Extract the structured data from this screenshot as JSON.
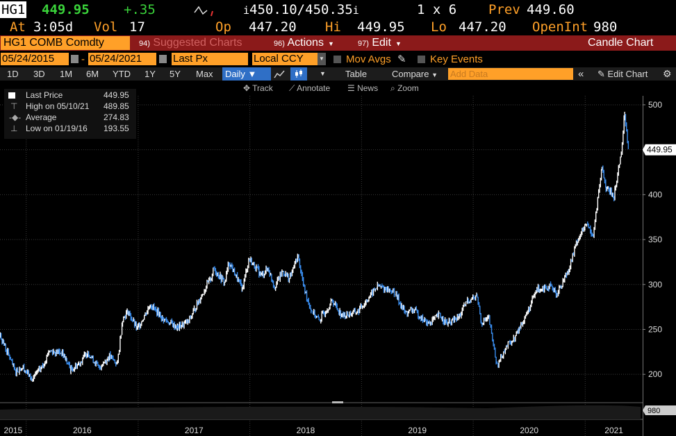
{
  "quote": {
    "ticker": "HG1",
    "last": "449.95",
    "change": "+.35",
    "bid": "450.10",
    "ask": "450.35",
    "size": "1 x 6",
    "prev_label": "Prev",
    "prev": "449.60",
    "at_label": "At",
    "time": "3:05d",
    "vol_label": "Vol",
    "vol": "17",
    "op_label": "Op",
    "open": "447.20",
    "hi_label": "Hi",
    "high": "449.95",
    "lo_label": "Lo",
    "low": "447.20",
    "oi_label": "OpenInt",
    "open_interest": "980"
  },
  "toolbar": {
    "security": "HG1 COMB Comdty",
    "suggested": {
      "num": "94)",
      "label": "Suggested Charts"
    },
    "actions": {
      "num": "96)",
      "label": "Actions"
    },
    "edit": {
      "num": "97)",
      "label": "Edit"
    },
    "chart_type": "Candle Chart"
  },
  "controls": {
    "start_date": "05/24/2015",
    "end_date": "05/24/2021",
    "field": "Last Px",
    "currency": "Local CCY",
    "mov_avgs": "Mov Avgs",
    "key_events": "Key Events"
  },
  "periods": [
    "1D",
    "3D",
    "1M",
    "6M",
    "YTD",
    "1Y",
    "5Y",
    "Max"
  ],
  "frequency": "Daily",
  "table_label": "Table",
  "compare_label": "Compare",
  "add_data_placeholder": "Add Data",
  "edit_chart_label": "Edit Chart",
  "tools": {
    "track": "Track",
    "annotate": "Annotate",
    "news": "News",
    "zoom": "Zoom"
  },
  "legend": [
    {
      "label": "Last Price",
      "value": "449.95"
    },
    {
      "label": "High on 05/10/21",
      "value": "489.85"
    },
    {
      "label": "Average",
      "value": "274.83"
    },
    {
      "label": "Low on 01/19/16",
      "value": "193.55"
    }
  ],
  "colors": {
    "accent": "#ffa028",
    "up": "#ffffff",
    "down": "#3a8ef0",
    "bar": "#8b1a1a",
    "change": "#3ad33a"
  },
  "chart_data": {
    "type": "line",
    "title": "",
    "xlabel": "",
    "ylabel": "",
    "x_ticks": [
      "2015",
      "2016",
      "2017",
      "2018",
      "2019",
      "2020",
      "2021"
    ],
    "y_ticks": [
      200,
      250,
      300,
      350,
      400,
      450,
      500
    ],
    "ylim": [
      170,
      510
    ],
    "last_label": "449.95",
    "volume_label": "980",
    "grid": true,
    "series": [
      {
        "values": [
          {
            "x": "2015-05-26",
            "y": 285
          },
          {
            "x": "2015-07-01",
            "y": 262
          },
          {
            "x": "2015-07-24",
            "y": 238
          },
          {
            "x": "2015-08-20",
            "y": 232
          },
          {
            "x": "2015-09-10",
            "y": 244
          },
          {
            "x": "2015-10-08",
            "y": 243
          },
          {
            "x": "2015-11-05",
            "y": 221
          },
          {
            "x": "2015-11-25",
            "y": 203
          },
          {
            "x": "2015-12-22",
            "y": 208
          },
          {
            "x": "2016-01-19",
            "y": 194
          },
          {
            "x": "2016-02-25",
            "y": 210
          },
          {
            "x": "2016-03-15",
            "y": 226
          },
          {
            "x": "2016-04-28",
            "y": 224
          },
          {
            "x": "2016-05-26",
            "y": 205
          },
          {
            "x": "2016-06-21",
            "y": 212
          },
          {
            "x": "2016-07-20",
            "y": 225
          },
          {
            "x": "2016-08-25",
            "y": 207
          },
          {
            "x": "2016-09-29",
            "y": 220
          },
          {
            "x": "2016-10-25",
            "y": 212
          },
          {
            "x": "2016-11-11",
            "y": 262
          },
          {
            "x": "2016-11-29",
            "y": 270
          },
          {
            "x": "2016-12-28",
            "y": 250
          },
          {
            "x": "2017-02-10",
            "y": 278
          },
          {
            "x": "2017-03-22",
            "y": 262
          },
          {
            "x": "2017-05-10",
            "y": 252
          },
          {
            "x": "2017-06-15",
            "y": 259
          },
          {
            "x": "2017-07-27",
            "y": 288
          },
          {
            "x": "2017-08-28",
            "y": 308
          },
          {
            "x": "2017-09-05",
            "y": 318
          },
          {
            "x": "2017-10-10",
            "y": 302
          },
          {
            "x": "2017-10-25",
            "y": 325
          },
          {
            "x": "2017-12-07",
            "y": 295
          },
          {
            "x": "2017-12-29",
            "y": 329
          },
          {
            "x": "2018-02-08",
            "y": 310
          },
          {
            "x": "2018-03-01",
            "y": 318
          },
          {
            "x": "2018-03-23",
            "y": 298
          },
          {
            "x": "2018-04-19",
            "y": 315
          },
          {
            "x": "2018-05-10",
            "y": 306
          },
          {
            "x": "2018-06-07",
            "y": 332
          },
          {
            "x": "2018-06-27",
            "y": 296
          },
          {
            "x": "2018-07-20",
            "y": 272
          },
          {
            "x": "2018-08-15",
            "y": 260
          },
          {
            "x": "2018-09-28",
            "y": 282
          },
          {
            "x": "2018-10-30",
            "y": 265
          },
          {
            "x": "2018-12-20",
            "y": 270
          },
          {
            "x": "2019-02-22",
            "y": 298
          },
          {
            "x": "2019-04-18",
            "y": 292
          },
          {
            "x": "2019-05-24",
            "y": 268
          },
          {
            "x": "2019-06-20",
            "y": 272
          },
          {
            "x": "2019-08-05",
            "y": 256
          },
          {
            "x": "2019-09-13",
            "y": 266
          },
          {
            "x": "2019-10-08",
            "y": 256
          },
          {
            "x": "2019-11-14",
            "y": 263
          },
          {
            "x": "2019-12-13",
            "y": 282
          },
          {
            "x": "2020-01-14",
            "y": 287
          },
          {
            "x": "2020-01-27",
            "y": 258
          },
          {
            "x": "2020-02-21",
            "y": 262
          },
          {
            "x": "2020-03-19",
            "y": 209
          },
          {
            "x": "2020-04-15",
            "y": 230
          },
          {
            "x": "2020-05-15",
            "y": 240
          },
          {
            "x": "2020-06-30",
            "y": 272
          },
          {
            "x": "2020-07-28",
            "y": 295
          },
          {
            "x": "2020-09-04",
            "y": 298
          },
          {
            "x": "2020-10-02",
            "y": 290
          },
          {
            "x": "2020-11-09",
            "y": 318
          },
          {
            "x": "2020-12-07",
            "y": 350
          },
          {
            "x": "2021-01-06",
            "y": 367
          },
          {
            "x": "2021-01-27",
            "y": 355
          },
          {
            "x": "2021-02-25",
            "y": 430
          },
          {
            "x": "2021-03-10",
            "y": 408
          },
          {
            "x": "2021-04-05",
            "y": 398
          },
          {
            "x": "2021-04-29",
            "y": 448
          },
          {
            "x": "2021-05-10",
            "y": 490
          },
          {
            "x": "2021-05-19",
            "y": 462
          },
          {
            "x": "2021-05-24",
            "y": 450
          }
        ]
      }
    ]
  }
}
